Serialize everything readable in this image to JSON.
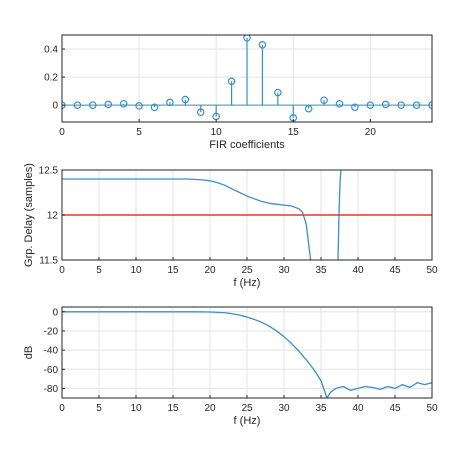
{
  "colors": {
    "series": "#3a8fc9",
    "reference": "#e8352b",
    "grid": "#e3e3e3",
    "axis": "#262626",
    "background": "#ffffff"
  },
  "chart_data": [
    {
      "type": "stem",
      "xlabel": "FIR coefficients",
      "ylabel": "",
      "xlim": [
        0,
        24
      ],
      "ylim": [
        -0.12,
        0.5
      ],
      "xticks": [
        0,
        5,
        10,
        15,
        20
      ],
      "yticks": [
        0,
        0.2,
        0.4
      ],
      "ytick_labels": [
        "0",
        "0.2",
        "0.4"
      ],
      "grid": true,
      "x": [
        0,
        1,
        2,
        3,
        4,
        5,
        6,
        7,
        8,
        9,
        10,
        11,
        12,
        13,
        14,
        15,
        16,
        17,
        18,
        19,
        20,
        21,
        22,
        23,
        24
      ],
      "values": [
        0.0,
        0.0,
        0.0,
        0.005,
        0.01,
        -0.005,
        -0.015,
        0.02,
        0.04,
        -0.05,
        -0.08,
        0.17,
        0.48,
        0.43,
        0.09,
        -0.09,
        -0.025,
        0.035,
        0.01,
        -0.015,
        0.0,
        0.005,
        0.0,
        0.0,
        0.0
      ]
    },
    {
      "type": "line",
      "xlabel": "f (Hz)",
      "ylabel": "Grp. Delay (samples)",
      "xlim": [
        0,
        50
      ],
      "ylim": [
        11.5,
        12.5
      ],
      "xticks": [
        0,
        5,
        10,
        15,
        20,
        25,
        30,
        35,
        40,
        45,
        50
      ],
      "yticks": [
        11.5,
        12,
        12.5
      ],
      "ytick_labels": [
        "11.5",
        "12",
        "12.5"
      ],
      "grid": true,
      "series": [
        {
          "x": [
            0,
            5,
            10,
            15,
            17,
            19,
            20,
            21,
            22,
            23,
            24,
            25,
            26,
            27,
            28,
            29,
            30,
            31,
            32,
            32.5,
            33,
            33.3,
            33.6
          ],
          "values": [
            12.4,
            12.4,
            12.4,
            12.4,
            12.4,
            12.39,
            12.38,
            12.36,
            12.33,
            12.29,
            12.25,
            12.21,
            12.18,
            12.15,
            12.13,
            12.12,
            12.11,
            12.1,
            12.07,
            12.03,
            11.9,
            11.7,
            11.5
          ]
        },
        {
          "x": [
            37.3,
            37.4,
            37.5,
            37.6,
            37.7
          ],
          "values": [
            11.5,
            11.9,
            12.2,
            12.4,
            12.5
          ]
        },
        {
          "x": [
            0,
            50
          ],
          "values": [
            12,
            12
          ]
        }
      ]
    },
    {
      "type": "line",
      "xlabel": "f (Hz)",
      "ylabel": "dB",
      "xlim": [
        0,
        50
      ],
      "ylim": [
        -90,
        5
      ],
      "xticks": [
        0,
        5,
        10,
        15,
        20,
        25,
        30,
        35,
        40,
        45,
        50
      ],
      "yticks": [
        0,
        -20,
        -40,
        -60,
        -80
      ],
      "ytick_labels": [
        "0",
        "-20",
        "-40",
        "-60",
        "-80"
      ],
      "grid": true,
      "series": [
        {
          "x": [
            0,
            5,
            10,
            15,
            18,
            20,
            22,
            23,
            24,
            25,
            26,
            27,
            28,
            29,
            30,
            31,
            32,
            33,
            34,
            35,
            35.8,
            36.3,
            37,
            38,
            39,
            40,
            41,
            42,
            43,
            44,
            45,
            46,
            47,
            48,
            49,
            50
          ],
          "values": [
            0,
            0,
            0,
            0,
            0,
            -0.2,
            -1,
            -2,
            -3.5,
            -5.5,
            -8,
            -11,
            -15,
            -20,
            -26,
            -33,
            -41,
            -50,
            -60,
            -72,
            -90,
            -84,
            -80,
            -78,
            -82,
            -80,
            -78,
            -79,
            -81,
            -78,
            -80,
            -76,
            -79,
            -74,
            -76,
            -74
          ]
        }
      ]
    }
  ]
}
